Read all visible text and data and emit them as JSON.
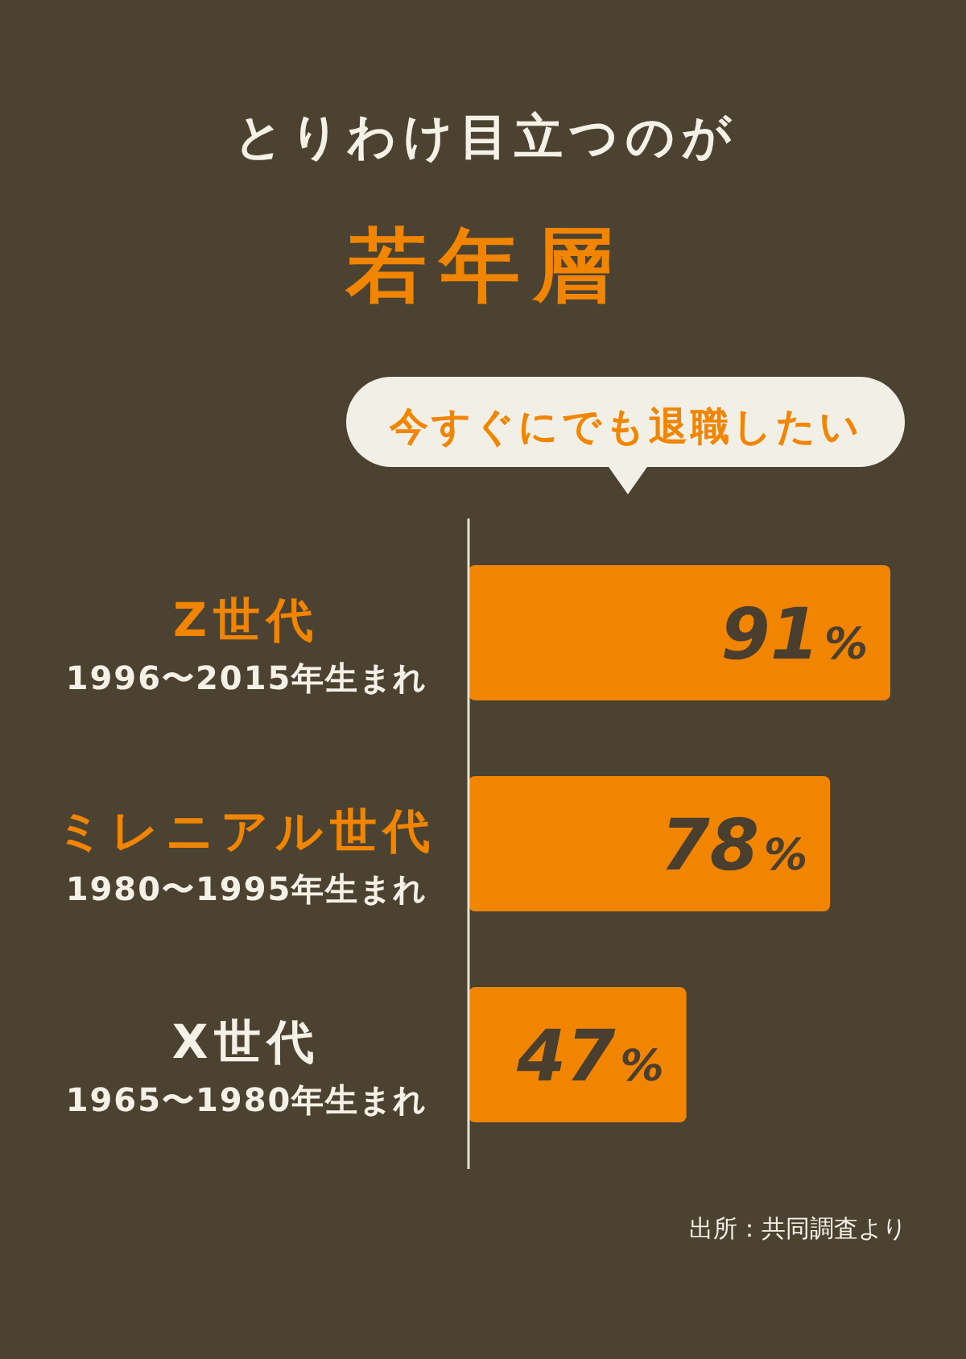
{
  "chart_data": {
    "type": "bar",
    "orientation": "horizontal",
    "title": "とりわけ目立つのが",
    "subtitle": "若年層",
    "categories": [
      "Z世代\n1996〜2015年生まれ",
      "ミレニアル世代\n1980〜1995年生まれ",
      "X世代\n1965〜1980年生まれ"
    ],
    "series": [
      {
        "name": "今すぐにでも退職したい",
        "color": "#f28500",
        "values": [
          91,
          78,
          47
        ],
        "value_labels": [
          "91%",
          "78%",
          "47%"
        ]
      }
    ],
    "tick_labels": "y",
    "annotations": [
      "出所：共同調査より"
    ]
  }
}
